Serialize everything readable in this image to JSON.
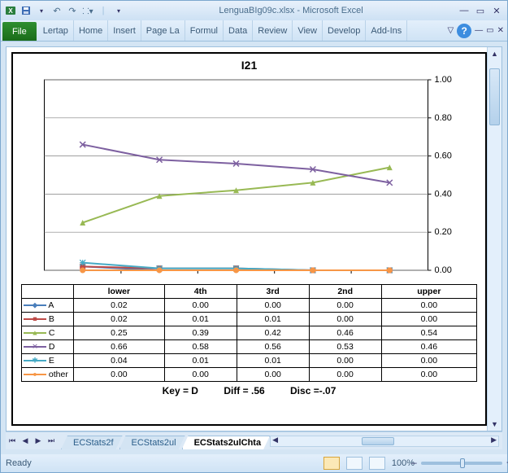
{
  "window": {
    "title": "LenguaBIg09c.xlsx - Microsoft Excel",
    "min_icon": "—",
    "max_icon": "▭",
    "close_icon": "✕"
  },
  "qat": {
    "save": "💾",
    "undo": "↶",
    "redo": "↷",
    "more": "▾"
  },
  "ribbon": {
    "file": "File",
    "tabs": [
      "Lertap",
      "Home",
      "Insert",
      "Page La",
      "Formul",
      "Data",
      "Review",
      "View",
      "Develop",
      "Add-Ins"
    ],
    "help": "?"
  },
  "chart": {
    "title": "I21",
    "type": "line",
    "categories": [
      "lower",
      "4th",
      "3rd",
      "2nd",
      "upper"
    ],
    "ylim": [
      0.0,
      1.0
    ],
    "ytick_step": 0.2,
    "yticks": [
      "0.00",
      "0.20",
      "0.40",
      "0.60",
      "0.80",
      "1.00"
    ],
    "grid_color": "#808080",
    "background": "#ffffff",
    "plot_border": "#000000",
    "line_width": 2,
    "marker_size": 5,
    "series": [
      {
        "name": "A",
        "color": "#4a7ebb",
        "marker": "diamond",
        "values": [
          0.02,
          0.0,
          0.0,
          0.0,
          0.0
        ]
      },
      {
        "name": "B",
        "color": "#be4b48",
        "marker": "square",
        "values": [
          0.02,
          0.01,
          0.01,
          0.0,
          0.0
        ]
      },
      {
        "name": "C",
        "color": "#98b954",
        "marker": "triangle",
        "values": [
          0.25,
          0.39,
          0.42,
          0.46,
          0.54
        ]
      },
      {
        "name": "D",
        "color": "#7d60a0",
        "marker": "x",
        "values": [
          0.66,
          0.58,
          0.56,
          0.53,
          0.46
        ]
      },
      {
        "name": "E",
        "color": "#46aac5",
        "marker": "star",
        "values": [
          0.04,
          0.01,
          0.01,
          0.0,
          0.0
        ]
      },
      {
        "name": "other",
        "color": "#f79646",
        "marker": "circle",
        "values": [
          0.0,
          0.0,
          0.0,
          0.0,
          0.0
        ]
      }
    ],
    "table_fmt": "0.00"
  },
  "stats": {
    "key": "Key = D",
    "diff": "Diff = .56",
    "disc": "Disc =-.07"
  },
  "sheet_tabs": {
    "tabs": [
      "ECStats2f",
      "ECStats2ul",
      "ECStats2ulChta"
    ],
    "active": 2
  },
  "statusbar": {
    "ready": "Ready",
    "zoom": "100%",
    "zoom_plus": "+",
    "zoom_minus": "–"
  }
}
